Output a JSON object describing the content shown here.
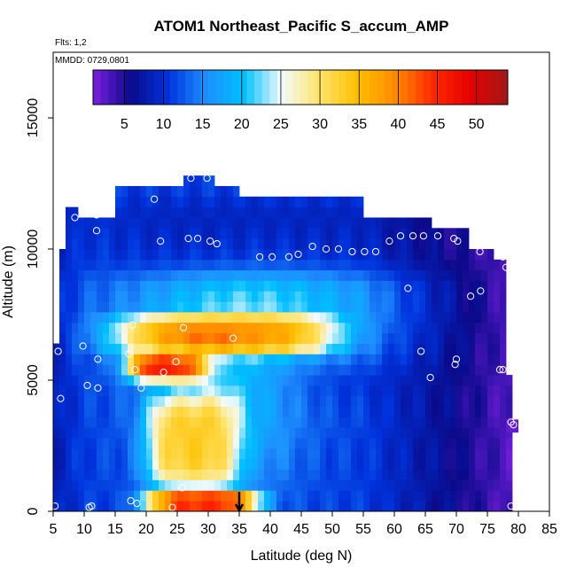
{
  "header": {
    "title": "ATOM1 Northeast_Pacific S_accum_AMP",
    "flights": "Flts: 1,2",
    "mmdd": "MMDD: 0729,0801"
  },
  "chart_data": {
    "type": "heatmap",
    "title": "ATOM1 Northeast_Pacific S_accum_AMP",
    "xlabel": "Latitude (deg N)",
    "ylabel": "Altitude (m)",
    "xlim": [
      5,
      85
    ],
    "ylim": [
      0,
      17500
    ],
    "xticks": [
      5,
      10,
      15,
      20,
      25,
      30,
      35,
      40,
      45,
      50,
      55,
      60,
      65,
      70,
      75,
      80,
      85
    ],
    "yticks": [
      0,
      5000,
      10000,
      15000
    ],
    "colorbar": {
      "min": 1,
      "max": 54,
      "ticks": [
        5,
        10,
        15,
        20,
        25,
        30,
        35,
        40,
        45,
        50
      ],
      "colors": [
        "#7a1fe0",
        "#0a0a8a",
        "#0033dd",
        "#1e90ff",
        "#00bfff",
        "#f2fbff",
        "#ffe36b",
        "#ffc000",
        "#ff8c00",
        "#ff2a00",
        "#e60000",
        "#a01818"
      ],
      "placement": "top"
    },
    "field_features": [
      {
        "name": "upper-troposphere low values",
        "lat": [
          10,
          70
        ],
        "alt": [
          9000,
          12000
        ],
        "value": 6
      },
      {
        "name": "mid-level band",
        "lat": [
          15,
          50
        ],
        "alt": [
          6000,
          7500
        ],
        "value": 38
      },
      {
        "name": "mid-level band southern",
        "lat": [
          17,
          30
        ],
        "alt": [
          5000,
          6000
        ],
        "value": 44
      },
      {
        "name": "boundary layer maximum",
        "lat": [
          20,
          38
        ],
        "alt": [
          0,
          800
        ],
        "value": 47
      },
      {
        "name": "lower troposphere plume",
        "lat": [
          20,
          35
        ],
        "alt": [
          800,
          4500
        ],
        "value": 33
      }
    ],
    "arrow_marker": {
      "lat": 35,
      "alt": 0
    },
    "sample_points": [
      [
        5.3,
        200
      ],
      [
        10.8,
        150
      ],
      [
        11.2,
        200
      ],
      [
        17.5,
        400
      ],
      [
        18.5,
        300
      ],
      [
        24.2,
        150
      ],
      [
        25.8,
        900
      ],
      [
        78.8,
        200
      ],
      [
        6.2,
        4300
      ],
      [
        10.5,
        4800
      ],
      [
        12.2,
        4700
      ],
      [
        19.2,
        4700
      ],
      [
        22.8,
        5300
      ],
      [
        24.8,
        5700
      ],
      [
        18.2,
        5400
      ],
      [
        17.2,
        6000
      ],
      [
        12.2,
        5800
      ],
      [
        9.8,
        6300
      ],
      [
        5.8,
        6100
      ],
      [
        17.8,
        7100
      ],
      [
        26.0,
        7000
      ],
      [
        34.0,
        6600
      ],
      [
        64.3,
        6100
      ],
      [
        65.8,
        5100
      ],
      [
        69.8,
        5600
      ],
      [
        70.0,
        5800
      ],
      [
        77.0,
        5400
      ],
      [
        77.5,
        5400
      ],
      [
        78.8,
        3400
      ],
      [
        79.2,
        3300
      ],
      [
        62.2,
        8500
      ],
      [
        72.3,
        8200
      ],
      [
        73.9,
        8400
      ],
      [
        78.0,
        9300
      ],
      [
        77.5,
        9700
      ],
      [
        73.8,
        9900
      ],
      [
        6.3,
        10600
      ],
      [
        8.5,
        11200
      ],
      [
        12.0,
        10700
      ],
      [
        12.0,
        11300
      ],
      [
        21.3,
        11900
      ],
      [
        22.3,
        10300
      ],
      [
        27.2,
        12700
      ],
      [
        29.8,
        12700
      ],
      [
        26.8,
        10400
      ],
      [
        28.3,
        10400
      ],
      [
        30.3,
        10300
      ],
      [
        31.4,
        10200
      ],
      [
        38.3,
        9700
      ],
      [
        40.3,
        9700
      ],
      [
        43.0,
        9700
      ],
      [
        44.5,
        9800
      ],
      [
        46.8,
        10100
      ],
      [
        49.0,
        10000
      ],
      [
        51.0,
        10000
      ],
      [
        53.2,
        9900
      ],
      [
        55.2,
        9900
      ],
      [
        57.0,
        9900
      ],
      [
        59.2,
        10300
      ],
      [
        61.0,
        10500
      ],
      [
        63.0,
        10500
      ],
      [
        64.7,
        10500
      ],
      [
        67.0,
        10500
      ],
      [
        67.2,
        11300
      ],
      [
        69.6,
        10400
      ],
      [
        70.2,
        10300
      ]
    ]
  }
}
